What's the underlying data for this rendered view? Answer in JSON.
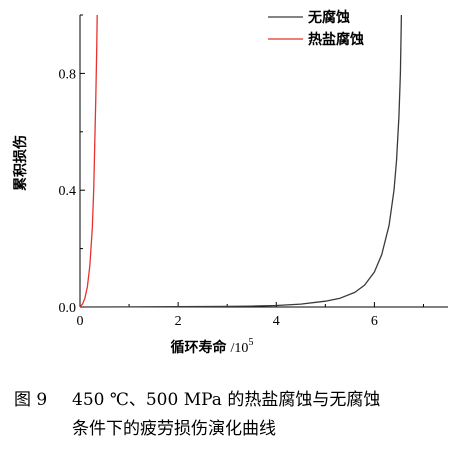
{
  "chart_data": {
    "type": "line",
    "xlabel": "循环寿命",
    "xlabel_unit": "/10",
    "xlabel_unit_exp": "5",
    "ylabel": "累积损伤",
    "xlim": [
      0,
      7.5
    ],
    "ylim": [
      0,
      1.0
    ],
    "xticks": [
      0,
      2,
      4,
      6
    ],
    "xtick_labels": [
      "0",
      "2",
      "4",
      "6"
    ],
    "yticks": [
      0.0,
      0.4,
      0.8
    ],
    "ytick_labels": [
      "0.0",
      "0.4",
      "0.8"
    ],
    "grid": false,
    "legend_position": "top-right",
    "series": [
      {
        "name": "无腐蚀",
        "color": "#3a3a3a",
        "x": [
          0,
          1.0,
          2.0,
          3.0,
          3.5,
          4.0,
          4.5,
          5.0,
          5.3,
          5.6,
          5.8,
          6.0,
          6.15,
          6.3,
          6.4,
          6.45,
          6.5,
          6.53,
          6.55
        ],
        "y": [
          0,
          0.0005,
          0.001,
          0.002,
          0.003,
          0.005,
          0.01,
          0.02,
          0.03,
          0.05,
          0.075,
          0.12,
          0.18,
          0.28,
          0.4,
          0.5,
          0.65,
          0.8,
          1.0
        ]
      },
      {
        "name": "热盐腐蚀",
        "color": "#e8322e",
        "x": [
          0,
          0.05,
          0.1,
          0.15,
          0.2,
          0.25,
          0.28,
          0.3,
          0.32,
          0.34,
          0.35
        ],
        "y": [
          0,
          0.01,
          0.03,
          0.07,
          0.14,
          0.27,
          0.4,
          0.55,
          0.7,
          0.88,
          1.0
        ]
      }
    ]
  },
  "caption": {
    "label": "图 9",
    "line1": "450 ℃、500 MPa 的热盐腐蚀与无腐蚀",
    "line2": "条件下的疲劳损伤演化曲线"
  }
}
